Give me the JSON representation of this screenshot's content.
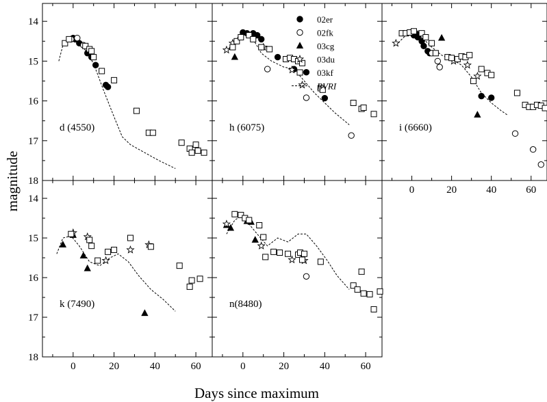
{
  "chart_data": {
    "type": "scatter",
    "xlabel": "Days since maximum",
    "ylabel": "magnitude",
    "xlim": [
      -15,
      68
    ],
    "ylim": [
      18,
      13.6
    ],
    "x_ticks": [
      "0",
      "20",
      "40",
      "60"
    ],
    "y_ticks": [
      "14",
      "15",
      "16",
      "17",
      "18"
    ],
    "legend": {
      "placement": "top-right of panel h",
      "entries": [
        {
          "name": "02er",
          "marker": "filled-circle"
        },
        {
          "name": "02fk",
          "marker": "open-circle"
        },
        {
          "name": "03cg",
          "marker": "filled-triangle"
        },
        {
          "name": "03du",
          "marker": "open-star"
        },
        {
          "name": "03kf",
          "marker": "open-square"
        },
        {
          "name": "BVRI",
          "marker": "dashed-line"
        }
      ]
    },
    "panels": [
      {
        "label": "d (4550)",
        "series": {
          "02er": [
            [
              0,
              14.42
            ],
            [
              1,
              14.45
            ],
            [
              3,
              14.55
            ],
            [
              7,
              14.8
            ],
            [
              9,
              14.9
            ],
            [
              11,
              15.1
            ],
            [
              16,
              15.6
            ],
            [
              17,
              15.65
            ]
          ],
          "02fk": [
            [
              -1,
              14.45
            ],
            [
              2,
              14.42
            ],
            [
              5,
              14.6
            ]
          ],
          "03kf": [
            [
              -4,
              14.55
            ],
            [
              -2,
              14.45
            ],
            [
              6,
              14.62
            ],
            [
              8,
              14.7
            ],
            [
              9,
              14.75
            ],
            [
              10,
              14.9
            ],
            [
              14,
              15.25
            ],
            [
              20,
              15.48
            ],
            [
              31,
              16.25
            ],
            [
              37,
              16.8
            ],
            [
              39,
              16.8
            ],
            [
              53,
              17.05
            ],
            [
              57,
              17.2
            ],
            [
              58,
              17.3
            ],
            [
              60,
              17.1
            ],
            [
              61,
              17.25
            ],
            [
              64,
              17.3
            ]
          ]
        },
        "bvri": [
          [
            -7,
            15.0
          ],
          [
            -5,
            14.6
          ],
          [
            -2,
            14.45
          ],
          [
            1,
            14.45
          ],
          [
            4,
            14.6
          ],
          [
            8,
            14.85
          ],
          [
            11,
            15.2
          ],
          [
            15,
            15.75
          ],
          [
            20,
            16.4
          ],
          [
            24,
            16.9
          ],
          [
            28,
            17.1
          ],
          [
            35,
            17.3
          ],
          [
            42,
            17.5
          ],
          [
            50,
            17.7
          ]
        ]
      },
      {
        "label": "h (6075)",
        "series": {
          "02er": [
            [
              0,
              14.28
            ],
            [
              2,
              14.3
            ],
            [
              5,
              14.3
            ],
            [
              7,
              14.35
            ],
            [
              9,
              14.45
            ],
            [
              17,
              14.9
            ],
            [
              25,
              15.2
            ],
            [
              31,
              15.28
            ],
            [
              40,
              15.93
            ]
          ],
          "02fk": [
            [
              12,
              15.2
            ],
            [
              31,
              15.92
            ],
            [
              53,
              16.87
            ]
          ],
          "03cg": [
            [
              -4,
              14.9
            ]
          ],
          "03du": [
            [
              -8,
              14.72
            ],
            [
              -5,
              14.55
            ],
            [
              10,
              14.65
            ],
            [
              24,
              15.22
            ],
            [
              29,
              15.6
            ]
          ],
          "03kf": [
            [
              -5,
              14.65
            ],
            [
              -3,
              14.5
            ],
            [
              -1,
              14.4
            ],
            [
              3,
              14.35
            ],
            [
              5,
              14.45
            ],
            [
              9,
              14.65
            ],
            [
              13,
              14.7
            ],
            [
              21,
              14.95
            ],
            [
              23,
              14.92
            ],
            [
              25,
              14.95
            ],
            [
              27,
              15.0
            ],
            [
              29,
              15.05
            ],
            [
              38,
              15.68
            ],
            [
              39,
              15.72
            ],
            [
              54,
              16.05
            ],
            [
              58,
              16.2
            ],
            [
              59,
              16.17
            ],
            [
              64,
              16.33
            ]
          ]
        },
        "bvri": [
          [
            -8,
            14.75
          ],
          [
            -4,
            14.5
          ],
          [
            -1,
            14.3
          ],
          [
            2,
            14.3
          ],
          [
            5,
            14.45
          ],
          [
            9,
            14.8
          ],
          [
            14,
            15.0
          ],
          [
            20,
            15.15
          ],
          [
            25,
            15.2
          ],
          [
            30,
            15.5
          ],
          [
            35,
            15.8
          ],
          [
            40,
            16.05
          ],
          [
            45,
            16.3
          ],
          [
            52,
            16.6
          ]
        ]
      },
      {
        "label": "i (6660)",
        "series": {
          "02er": [
            [
              1,
              14.35
            ],
            [
              3,
              14.4
            ],
            [
              5,
              14.5
            ],
            [
              6,
              14.62
            ],
            [
              8,
              14.75
            ],
            [
              9,
              14.8
            ],
            [
              35,
              15.88
            ],
            [
              40,
              15.92
            ]
          ],
          "02fk": [
            [
              10,
              14.8
            ],
            [
              13,
              15.0
            ],
            [
              14,
              15.15
            ],
            [
              52,
              16.82
            ],
            [
              61,
              17.22
            ],
            [
              65,
              17.6
            ]
          ],
          "03cg": [
            [
              3,
              14.32
            ],
            [
              15,
              14.42
            ],
            [
              33,
              16.35
            ]
          ],
          "03du": [
            [
              -8,
              14.55
            ],
            [
              21,
              15.0
            ],
            [
              28,
              15.1
            ],
            [
              33,
              15.38
            ]
          ],
          "03kf": [
            [
              -5,
              14.3
            ],
            [
              -3,
              14.3
            ],
            [
              -1,
              14.28
            ],
            [
              1,
              14.25
            ],
            [
              5,
              14.3
            ],
            [
              7,
              14.4
            ],
            [
              10,
              14.55
            ],
            [
              12,
              14.8
            ],
            [
              18,
              14.9
            ],
            [
              20,
              14.92
            ],
            [
              23,
              14.95
            ],
            [
              25,
              14.88
            ],
            [
              27,
              14.9
            ],
            [
              29,
              14.85
            ],
            [
              31,
              15.5
            ],
            [
              35,
              15.2
            ],
            [
              38,
              15.3
            ],
            [
              40,
              15.35
            ],
            [
              53,
              15.8
            ],
            [
              57,
              16.1
            ],
            [
              59,
              16.15
            ],
            [
              61,
              16.15
            ],
            [
              63,
              16.1
            ],
            [
              65,
              16.12
            ],
            [
              67,
              16.18
            ]
          ]
        },
        "bvri": [
          [
            -8,
            14.6
          ],
          [
            -4,
            14.4
          ],
          [
            -1,
            14.28
          ],
          [
            2,
            14.3
          ],
          [
            6,
            14.45
          ],
          [
            10,
            14.65
          ],
          [
            15,
            14.85
          ],
          [
            20,
            14.95
          ],
          [
            25,
            15.1
          ],
          [
            30,
            15.4
          ],
          [
            35,
            15.8
          ],
          [
            40,
            16.05
          ],
          [
            45,
            16.25
          ],
          [
            48,
            16.35
          ]
        ]
      },
      {
        "label": "k (7490)",
        "series": {
          "03cg": [
            [
              -5,
              15.17
            ],
            [
              0,
              14.93
            ],
            [
              5,
              15.45
            ],
            [
              7,
              15.77
            ],
            [
              35,
              16.9
            ]
          ],
          "03du": [
            [
              0,
              14.87
            ],
            [
              7,
              14.97
            ],
            [
              16,
              15.57
            ],
            [
              28,
              15.3
            ],
            [
              37,
              15.17
            ]
          ],
          "03kf": [
            [
              -1,
              14.9
            ],
            [
              8,
              15.05
            ],
            [
              9,
              15.2
            ],
            [
              12,
              15.57
            ],
            [
              17,
              15.35
            ],
            [
              20,
              15.3
            ],
            [
              28,
              15.0
            ],
            [
              38,
              15.22
            ],
            [
              52,
              15.7
            ],
            [
              57,
              16.23
            ],
            [
              58,
              16.07
            ],
            [
              62,
              16.03
            ]
          ]
        },
        "bvri": [
          [
            -8,
            15.4
          ],
          [
            -5,
            15.0
          ],
          [
            -1,
            14.95
          ],
          [
            3,
            15.2
          ],
          [
            8,
            15.6
          ],
          [
            13,
            15.7
          ],
          [
            18,
            15.5
          ],
          [
            22,
            15.4
          ],
          [
            27,
            15.6
          ],
          [
            32,
            15.95
          ],
          [
            38,
            16.3
          ],
          [
            44,
            16.55
          ],
          [
            50,
            16.85
          ]
        ]
      },
      {
        "label": "n(8480)",
        "series": {
          "03cg": [
            [
              -8,
              14.68
            ],
            [
              -6,
              14.75
            ],
            [
              2,
              14.58
            ],
            [
              4,
              14.6
            ],
            [
              6,
              15.05
            ]
          ],
          "03du": [
            [
              -8,
              14.65
            ],
            [
              9,
              15.2
            ],
            [
              24,
              15.55
            ],
            [
              30,
              15.57
            ]
          ],
          "03kf": [
            [
              -4,
              14.4
            ],
            [
              -1,
              14.42
            ],
            [
              1,
              14.5
            ],
            [
              3,
              14.55
            ],
            [
              8,
              14.68
            ],
            [
              10,
              14.98
            ],
            [
              11,
              15.48
            ],
            [
              15,
              15.35
            ],
            [
              18,
              15.37
            ],
            [
              22,
              15.4
            ],
            [
              27,
              15.42
            ],
            [
              28,
              15.37
            ],
            [
              29,
              15.55
            ],
            [
              30,
              15.4
            ],
            [
              38,
              15.6
            ],
            [
              54,
              16.2
            ],
            [
              56,
              16.3
            ],
            [
              58,
              15.85
            ],
            [
              59,
              16.4
            ],
            [
              62,
              16.42
            ],
            [
              64,
              16.8
            ],
            [
              67,
              16.35
            ]
          ],
          "02fk": [
            [
              31,
              15.97
            ]
          ]
        },
        "bvri": [
          [
            -8,
            14.9
          ],
          [
            -4,
            14.55
          ],
          [
            -1,
            14.45
          ],
          [
            3,
            14.65
          ],
          [
            7,
            14.9
          ],
          [
            12,
            15.2
          ],
          [
            17,
            15.0
          ],
          [
            22,
            15.1
          ],
          [
            27,
            14.9
          ],
          [
            31,
            14.9
          ],
          [
            36,
            15.2
          ],
          [
            41,
            15.55
          ],
          [
            46,
            15.95
          ],
          [
            52,
            16.3
          ]
        ]
      }
    ]
  }
}
